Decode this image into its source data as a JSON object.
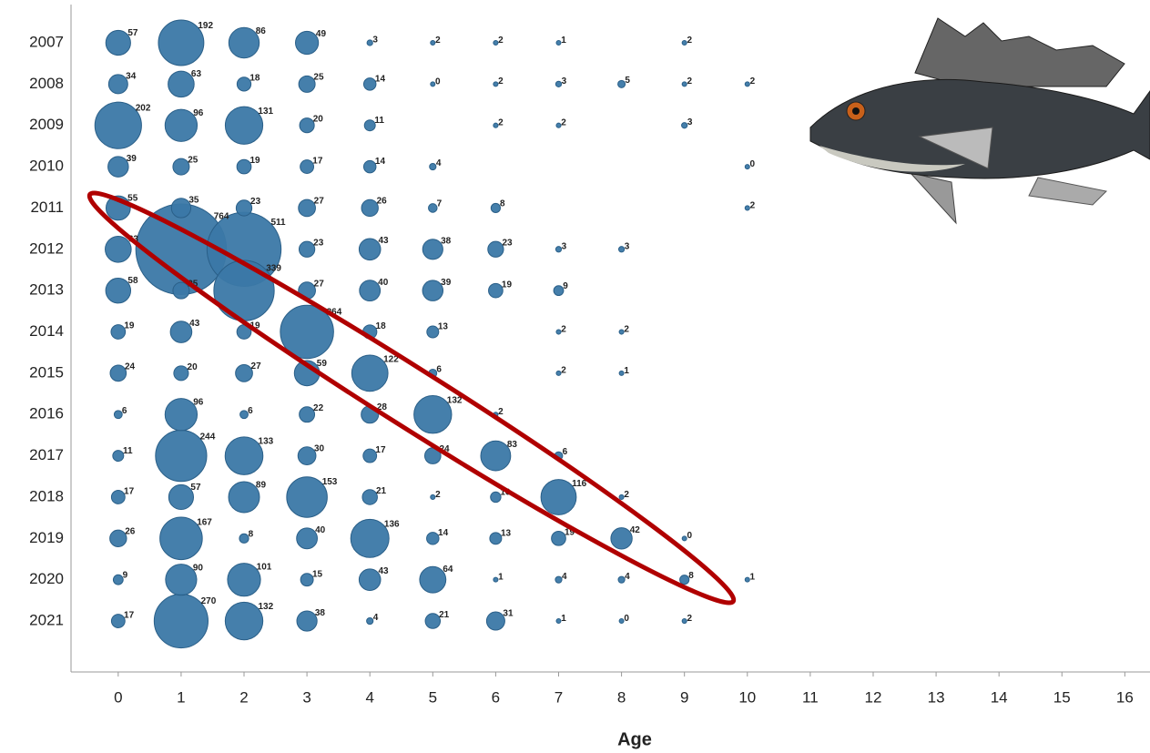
{
  "chart_data": {
    "type": "bubble",
    "x_label": "Age",
    "categories": [
      "2007",
      "2008",
      "2009",
      "2010",
      "2011",
      "2012",
      "2013",
      "2014",
      "2015",
      "2016",
      "2017",
      "2018",
      "2019",
      "2020",
      "2021"
    ],
    "xlim": [
      -0.75,
      16.4
    ],
    "xticks": [
      0,
      1,
      2,
      3,
      4,
      5,
      6,
      7,
      8,
      9,
      10,
      11,
      12,
      13,
      14,
      15,
      16
    ],
    "color": "#3b78a6",
    "highlight_color": "#b00000",
    "points": [
      {
        "y": "2007",
        "x": 0,
        "size": 57
      },
      {
        "y": "2007",
        "x": 1,
        "size": 192
      },
      {
        "y": "2007",
        "x": 2,
        "size": 86
      },
      {
        "y": "2007",
        "x": 3,
        "size": 49
      },
      {
        "y": "2007",
        "x": 4,
        "size": 3
      },
      {
        "y": "2007",
        "x": 5,
        "size": 2
      },
      {
        "y": "2007",
        "x": 6,
        "size": 2
      },
      {
        "y": "2007",
        "x": 7,
        "size": 1
      },
      {
        "y": "2007",
        "x": 9,
        "size": 2
      },
      {
        "y": "2008",
        "x": 0,
        "size": 34
      },
      {
        "y": "2008",
        "x": 1,
        "size": 63
      },
      {
        "y": "2008",
        "x": 2,
        "size": 18
      },
      {
        "y": "2008",
        "x": 3,
        "size": 25
      },
      {
        "y": "2008",
        "x": 4,
        "size": 14
      },
      {
        "y": "2008",
        "x": 5,
        "size": 0
      },
      {
        "y": "2008",
        "x": 6,
        "size": 2
      },
      {
        "y": "2008",
        "x": 7,
        "size": 3
      },
      {
        "y": "2008",
        "x": 8,
        "size": 5
      },
      {
        "y": "2008",
        "x": 9,
        "size": 2
      },
      {
        "y": "2008",
        "x": 10,
        "size": 2
      },
      {
        "y": "2009",
        "x": 0,
        "size": 202
      },
      {
        "y": "2009",
        "x": 1,
        "size": 96
      },
      {
        "y": "2009",
        "x": 2,
        "size": 131
      },
      {
        "y": "2009",
        "x": 3,
        "size": 20
      },
      {
        "y": "2009",
        "x": 4,
        "size": 11
      },
      {
        "y": "2009",
        "x": 6,
        "size": 2
      },
      {
        "y": "2009",
        "x": 7,
        "size": 2
      },
      {
        "y": "2009",
        "x": 9,
        "size": 3
      },
      {
        "y": "2010",
        "x": 0,
        "size": 39
      },
      {
        "y": "2010",
        "x": 1,
        "size": 25
      },
      {
        "y": "2010",
        "x": 2,
        "size": 19
      },
      {
        "y": "2010",
        "x": 3,
        "size": 17
      },
      {
        "y": "2010",
        "x": 4,
        "size": 14
      },
      {
        "y": "2010",
        "x": 5,
        "size": 4
      },
      {
        "y": "2010",
        "x": 10,
        "size": 0
      },
      {
        "y": "2011",
        "x": 0,
        "size": 55
      },
      {
        "y": "2011",
        "x": 1,
        "size": 35
      },
      {
        "y": "2011",
        "x": 2,
        "size": 23
      },
      {
        "y": "2011",
        "x": 3,
        "size": 27
      },
      {
        "y": "2011",
        "x": 4,
        "size": 26
      },
      {
        "y": "2011",
        "x": 5,
        "size": 7
      },
      {
        "y": "2011",
        "x": 6,
        "size": 8
      },
      {
        "y": "2011",
        "x": 10,
        "size": 2
      },
      {
        "y": "2012",
        "x": 0,
        "size": 63
      },
      {
        "y": "2012",
        "x": 1,
        "size": 764
      },
      {
        "y": "2012",
        "x": 2,
        "size": 511
      },
      {
        "y": "2012",
        "x": 3,
        "size": 23
      },
      {
        "y": "2012",
        "x": 4,
        "size": 43
      },
      {
        "y": "2012",
        "x": 5,
        "size": 38
      },
      {
        "y": "2012",
        "x": 6,
        "size": 23
      },
      {
        "y": "2012",
        "x": 7,
        "size": 3
      },
      {
        "y": "2012",
        "x": 8,
        "size": 3
      },
      {
        "y": "2013",
        "x": 0,
        "size": 58
      },
      {
        "y": "2013",
        "x": 1,
        "size": 25
      },
      {
        "y": "2013",
        "x": 2,
        "size": 339
      },
      {
        "y": "2013",
        "x": 3,
        "size": 27
      },
      {
        "y": "2013",
        "x": 4,
        "size": 40
      },
      {
        "y": "2013",
        "x": 5,
        "size": 39
      },
      {
        "y": "2013",
        "x": 6,
        "size": 19
      },
      {
        "y": "2013",
        "x": 7,
        "size": 9
      },
      {
        "y": "2014",
        "x": 0,
        "size": 19
      },
      {
        "y": "2014",
        "x": 1,
        "size": 43
      },
      {
        "y": "2014",
        "x": 2,
        "size": 19
      },
      {
        "y": "2014",
        "x": 3,
        "size": 264
      },
      {
        "y": "2014",
        "x": 4,
        "size": 18
      },
      {
        "y": "2014",
        "x": 5,
        "size": 13
      },
      {
        "y": "2014",
        "x": 7,
        "size": 2
      },
      {
        "y": "2014",
        "x": 8,
        "size": 2
      },
      {
        "y": "2015",
        "x": 0,
        "size": 24
      },
      {
        "y": "2015",
        "x": 1,
        "size": 20
      },
      {
        "y": "2015",
        "x": 2,
        "size": 27
      },
      {
        "y": "2015",
        "x": 3,
        "size": 59
      },
      {
        "y": "2015",
        "x": 4,
        "size": 122
      },
      {
        "y": "2015",
        "x": 5,
        "size": 6
      },
      {
        "y": "2015",
        "x": 7,
        "size": 2
      },
      {
        "y": "2015",
        "x": 8,
        "size": 1
      },
      {
        "y": "2016",
        "x": 0,
        "size": 6
      },
      {
        "y": "2016",
        "x": 1,
        "size": 96
      },
      {
        "y": "2016",
        "x": 2,
        "size": 6
      },
      {
        "y": "2016",
        "x": 3,
        "size": 22
      },
      {
        "y": "2016",
        "x": 4,
        "size": 28
      },
      {
        "y": "2016",
        "x": 5,
        "size": 132
      },
      {
        "y": "2016",
        "x": 6,
        "size": 2
      },
      {
        "y": "2017",
        "x": 0,
        "size": 11
      },
      {
        "y": "2017",
        "x": 1,
        "size": 244
      },
      {
        "y": "2017",
        "x": 2,
        "size": 133
      },
      {
        "y": "2017",
        "x": 3,
        "size": 30
      },
      {
        "y": "2017",
        "x": 4,
        "size": 17
      },
      {
        "y": "2017",
        "x": 5,
        "size": 24
      },
      {
        "y": "2017",
        "x": 6,
        "size": 83
      },
      {
        "y": "2017",
        "x": 7,
        "size": 6
      },
      {
        "y": "2018",
        "x": 0,
        "size": 17
      },
      {
        "y": "2018",
        "x": 1,
        "size": 57
      },
      {
        "y": "2018",
        "x": 2,
        "size": 89
      },
      {
        "y": "2018",
        "x": 3,
        "size": 153
      },
      {
        "y": "2018",
        "x": 4,
        "size": 21
      },
      {
        "y": "2018",
        "x": 5,
        "size": 2
      },
      {
        "y": "2018",
        "x": 6,
        "size": 10
      },
      {
        "y": "2018",
        "x": 7,
        "size": 116
      },
      {
        "y": "2018",
        "x": 8,
        "size": 2
      },
      {
        "y": "2019",
        "x": 0,
        "size": 26
      },
      {
        "y": "2019",
        "x": 1,
        "size": 167
      },
      {
        "y": "2019",
        "x": 2,
        "size": 8
      },
      {
        "y": "2019",
        "x": 3,
        "size": 40
      },
      {
        "y": "2019",
        "x": 4,
        "size": 136
      },
      {
        "y": "2019",
        "x": 5,
        "size": 14
      },
      {
        "y": "2019",
        "x": 6,
        "size": 13
      },
      {
        "y": "2019",
        "x": 7,
        "size": 19
      },
      {
        "y": "2019",
        "x": 8,
        "size": 42
      },
      {
        "y": "2019",
        "x": 9,
        "size": 0
      },
      {
        "y": "2020",
        "x": 0,
        "size": 9
      },
      {
        "y": "2020",
        "x": 1,
        "size": 90
      },
      {
        "y": "2020",
        "x": 2,
        "size": 101
      },
      {
        "y": "2020",
        "x": 3,
        "size": 15
      },
      {
        "y": "2020",
        "x": 4,
        "size": 43
      },
      {
        "y": "2020",
        "x": 5,
        "size": 64
      },
      {
        "y": "2020",
        "x": 6,
        "size": 1
      },
      {
        "y": "2020",
        "x": 7,
        "size": 4
      },
      {
        "y": "2020",
        "x": 8,
        "size": 4
      },
      {
        "y": "2020",
        "x": 9,
        "size": 8
      },
      {
        "y": "2020",
        "x": 10,
        "size": 1
      },
      {
        "y": "2021",
        "x": 0,
        "size": 17
      },
      {
        "y": "2021",
        "x": 1,
        "size": 270
      },
      {
        "y": "2021",
        "x": 2,
        "size": 132
      },
      {
        "y": "2021",
        "x": 3,
        "size": 38
      },
      {
        "y": "2021",
        "x": 4,
        "size": 4
      },
      {
        "y": "2021",
        "x": 5,
        "size": 21
      },
      {
        "y": "2021",
        "x": 6,
        "size": 31
      },
      {
        "y": "2021",
        "x": 7,
        "size": 1
      },
      {
        "y": "2021",
        "x": 8,
        "size": 0
      },
      {
        "y": "2021",
        "x": 9,
        "size": 2
      }
    ]
  }
}
